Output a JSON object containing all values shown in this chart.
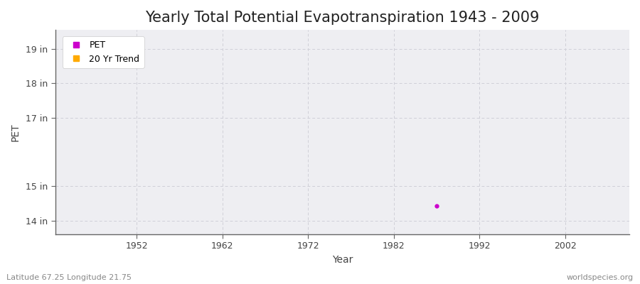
{
  "title": "Yearly Total Potential Evapotranspiration 1943 - 2009",
  "xlabel": "Year",
  "ylabel": "PET",
  "plot_bg_color": "#eeeef2",
  "fig_bg_color": "#ffffff",
  "grid_color_h": "#d0d0d8",
  "grid_color_v": "#d0d0d8",
  "spine_color": "#666666",
  "yticks": [
    14,
    15,
    17,
    18,
    19
  ],
  "ytick_labels": [
    "14 in",
    "15 in",
    "17 in",
    "18 in",
    "19 in"
  ],
  "ylim": [
    13.6,
    19.55
  ],
  "xlim": [
    1942.5,
    2009.5
  ],
  "xticks": [
    1952,
    1962,
    1972,
    1982,
    1992,
    2002
  ],
  "data_point_x": 1987,
  "data_point_y": 14.42,
  "data_color": "#cc00cc",
  "trend_color": "#ffaa00",
  "legend_labels": [
    "PET",
    "20 Yr Trend"
  ],
  "legend_colors": [
    "#cc00cc",
    "#ffaa00"
  ],
  "footer_left": "Latitude 67.25 Longitude 21.75",
  "footer_right": "worldspecies.org",
  "title_fontsize": 15,
  "label_fontsize": 10,
  "tick_fontsize": 9,
  "footer_fontsize": 8
}
